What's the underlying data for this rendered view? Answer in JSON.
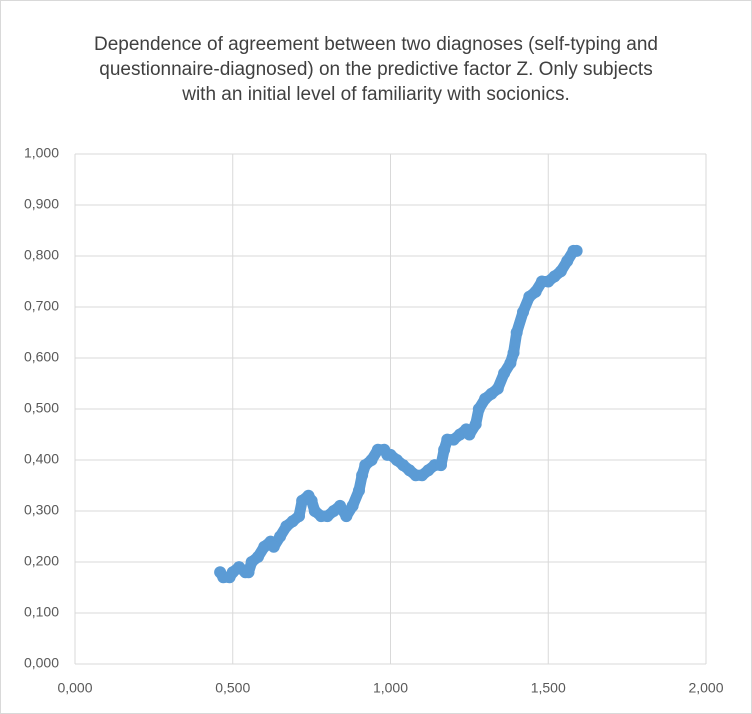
{
  "chart_data": {
    "type": "scatter",
    "title": [
      "Dependence of agreement between two diagnoses (self-typing and",
      "questionnaire-diagnosed) on the predictive factor Z. Only subjects",
      "with an initial level of familiarity with socionics."
    ],
    "x": [
      0.46,
      0.47,
      0.49,
      0.5,
      0.52,
      0.54,
      0.55,
      0.56,
      0.58,
      0.6,
      0.62,
      0.63,
      0.65,
      0.67,
      0.69,
      0.71,
      0.72,
      0.74,
      0.75,
      0.76,
      0.78,
      0.8,
      0.82,
      0.84,
      0.86,
      0.88,
      0.9,
      0.91,
      0.92,
      0.94,
      0.96,
      0.98,
      0.99,
      1.0,
      1.02,
      1.04,
      1.06,
      1.08,
      1.1,
      1.12,
      1.14,
      1.16,
      1.17,
      1.18,
      1.2,
      1.22,
      1.24,
      1.25,
      1.27,
      1.28,
      1.3,
      1.32,
      1.34,
      1.36,
      1.38,
      1.39,
      1.4,
      1.42,
      1.44,
      1.46,
      1.48,
      1.5,
      1.52,
      1.54,
      1.56,
      1.58,
      1.59
    ],
    "values": [
      0.18,
      0.17,
      0.17,
      0.18,
      0.19,
      0.18,
      0.18,
      0.2,
      0.21,
      0.23,
      0.24,
      0.23,
      0.25,
      0.27,
      0.28,
      0.29,
      0.32,
      0.33,
      0.32,
      0.3,
      0.29,
      0.29,
      0.3,
      0.31,
      0.29,
      0.31,
      0.34,
      0.37,
      0.39,
      0.4,
      0.42,
      0.42,
      0.41,
      0.41,
      0.4,
      0.39,
      0.38,
      0.37,
      0.37,
      0.38,
      0.39,
      0.39,
      0.42,
      0.44,
      0.44,
      0.45,
      0.46,
      0.45,
      0.47,
      0.5,
      0.52,
      0.53,
      0.54,
      0.57,
      0.59,
      0.61,
      0.65,
      0.69,
      0.72,
      0.73,
      0.75,
      0.75,
      0.76,
      0.77,
      0.79,
      0.81,
      0.81
    ],
    "color": "#5b9bd5",
    "xlim": [
      0,
      2
    ],
    "ylim": [
      0,
      1
    ],
    "xticks": [
      {
        "value": 0,
        "label": "0,000"
      },
      {
        "value": 0.5,
        "label": "0,500"
      },
      {
        "value": 1,
        "label": "1,000"
      },
      {
        "value": 1.5,
        "label": "1,500"
      },
      {
        "value": 2,
        "label": "2,000"
      }
    ],
    "yticks": [
      {
        "value": 0,
        "label": "0,000"
      },
      {
        "value": 0.1,
        "label": "0,100"
      },
      {
        "value": 0.2,
        "label": "0,200"
      },
      {
        "value": 0.3,
        "label": "0,300"
      },
      {
        "value": 0.4,
        "label": "0,400"
      },
      {
        "value": 0.5,
        "label": "0,500"
      },
      {
        "value": 0.6,
        "label": "0,600"
      },
      {
        "value": 0.7,
        "label": "0,700"
      },
      {
        "value": 0.8,
        "label": "0,800"
      },
      {
        "value": 0.9,
        "label": "0,900"
      },
      {
        "value": 1,
        "label": "1,000"
      }
    ],
    "grid": true
  }
}
